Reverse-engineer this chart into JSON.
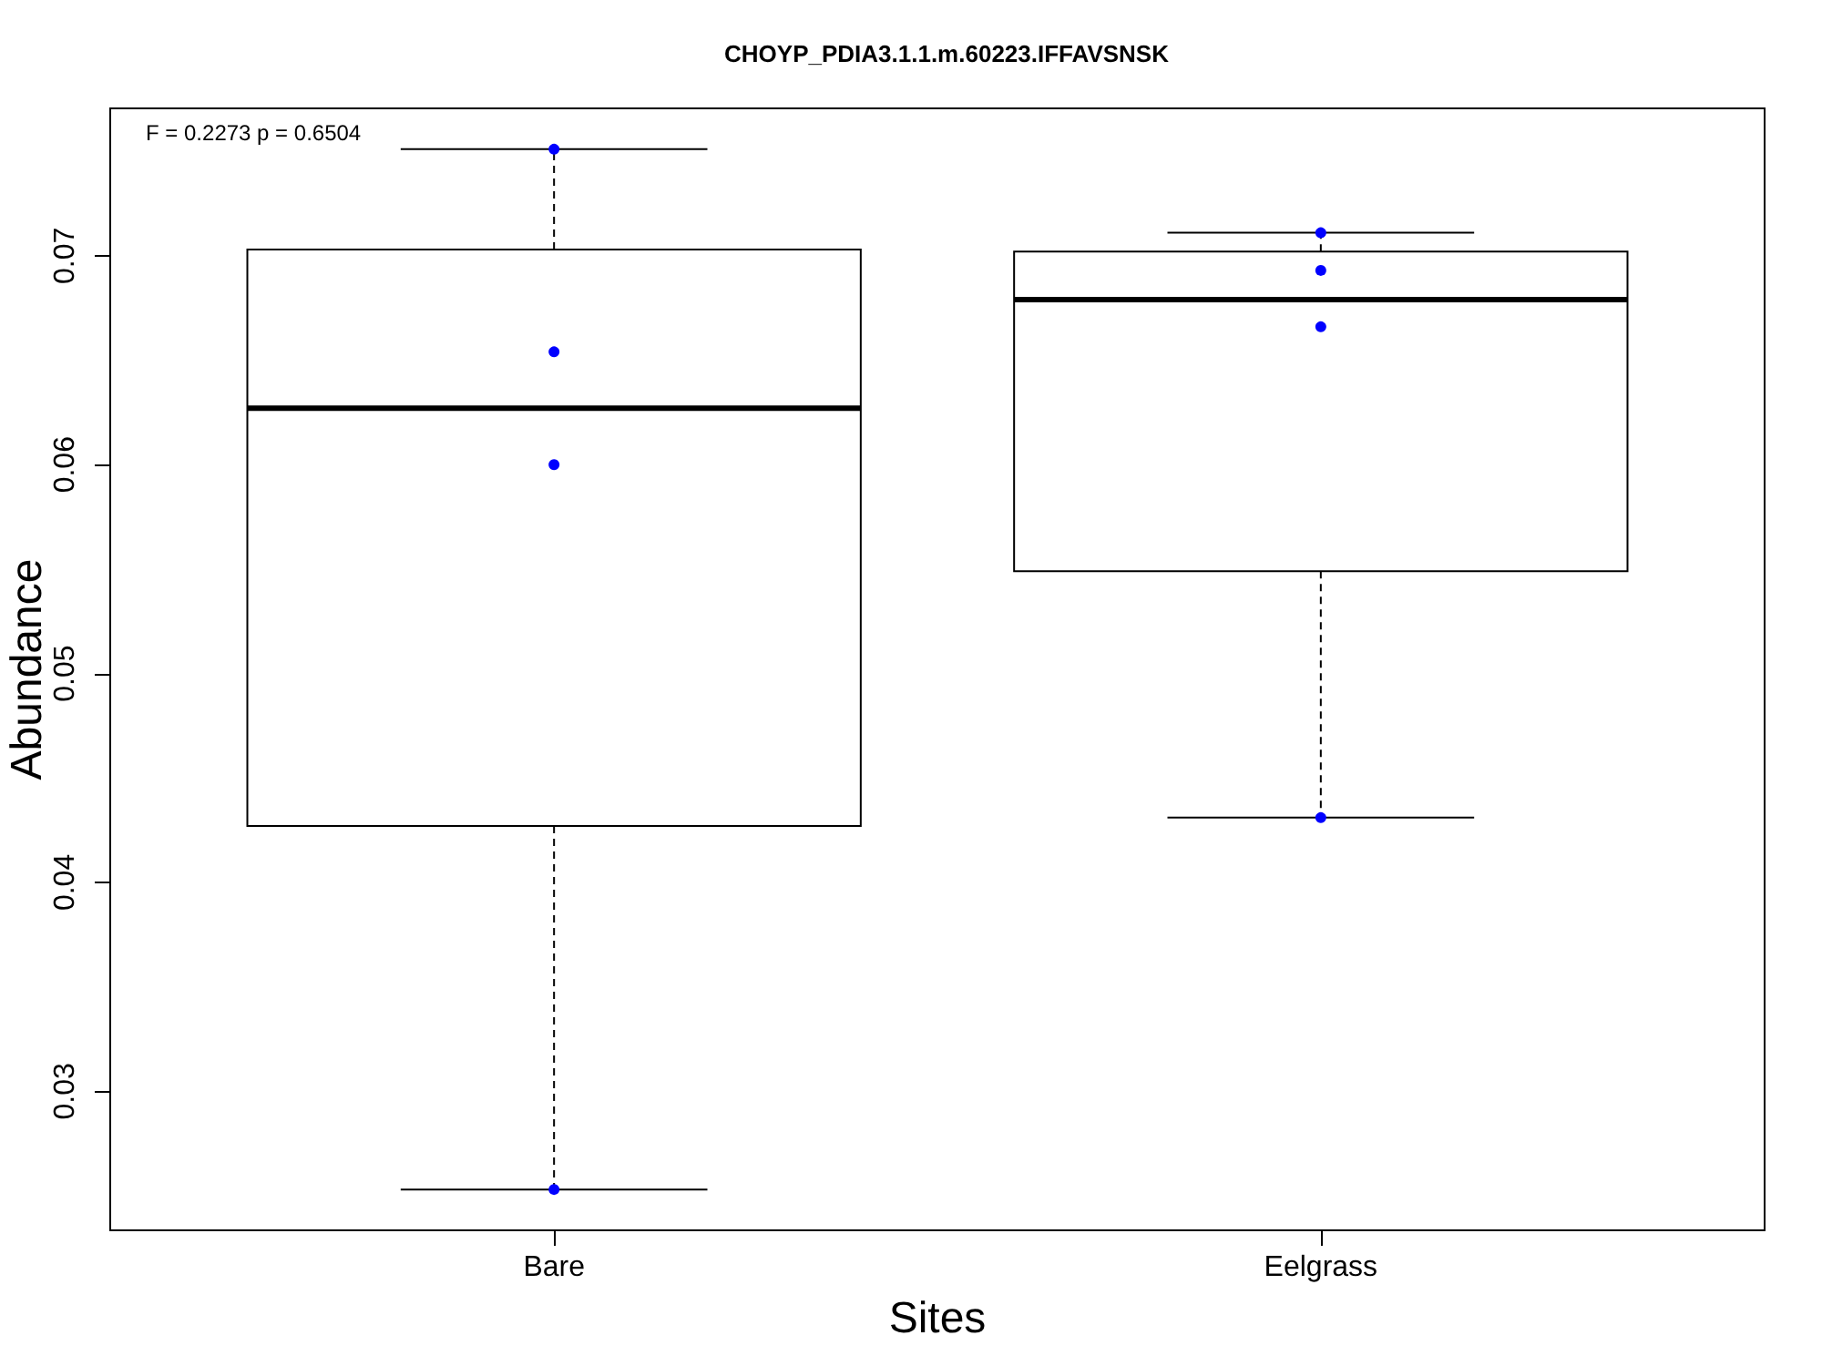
{
  "chart_data": {
    "type": "box",
    "title": "CHOYP_PDIA3.1.1.m.60223.IFFAVSNSK",
    "xlabel": "Sites",
    "ylabel": "Abundance",
    "annotations": [
      "F = 0.2273 p = 0.6504"
    ],
    "categories": [
      "Bare",
      "Eelgrass"
    ],
    "ylim": [
      0.0233,
      0.0771
    ],
    "yticks": [
      0.03,
      0.04,
      0.05,
      0.06,
      0.07
    ],
    "marker": "circle",
    "series": [
      {
        "type": "box",
        "color": "#000000",
        "boxes": [
          {
            "low": 0.0253,
            "q1": 0.0427,
            "median": 0.0627,
            "q3": 0.0703,
            "high": 0.0751
          },
          {
            "low": 0.0431,
            "q1": 0.0549,
            "median": 0.0679,
            "q3": 0.0702,
            "high": 0.0711
          }
        ]
      },
      {
        "type": "scatter",
        "color": "#0000ff",
        "x": [
          "Bare",
          "Bare",
          "Bare",
          "Bare",
          "Eelgrass",
          "Eelgrass",
          "Eelgrass",
          "Eelgrass"
        ],
        "values": [
          0.0751,
          0.0654,
          0.06,
          0.0253,
          0.0711,
          0.0693,
          0.0666,
          0.0431
        ]
      }
    ]
  }
}
